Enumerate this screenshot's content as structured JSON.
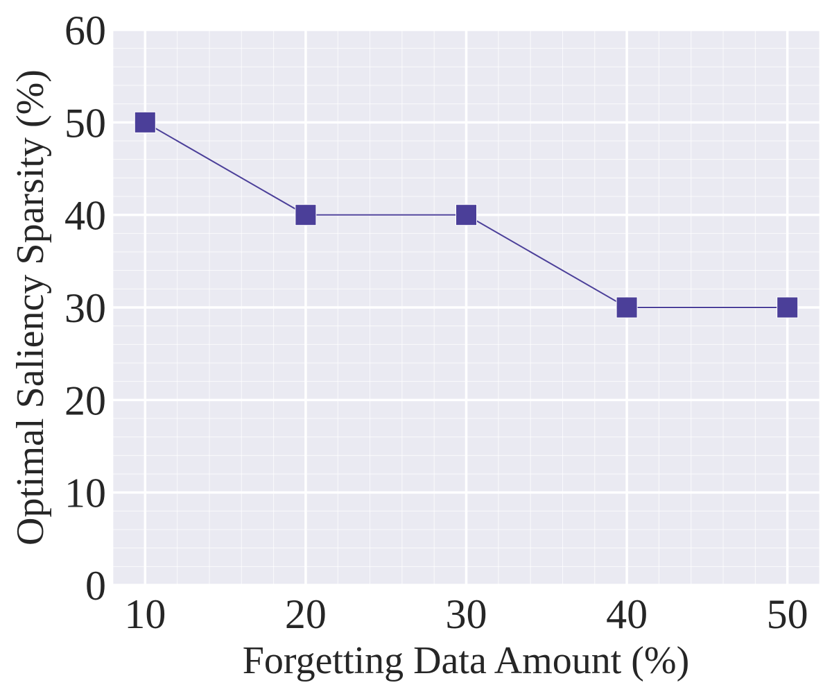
{
  "chart_data": {
    "type": "line",
    "title": "",
    "xlabel": "Forgetting Data Amount (%)",
    "ylabel": "Optimal Saliency Sparsity (%)",
    "x": [
      10,
      20,
      30,
      40,
      50
    ],
    "series": [
      {
        "values": [
          50,
          40,
          40,
          30,
          30
        ]
      }
    ],
    "xlim": [
      8,
      52
    ],
    "ylim": [
      0,
      60
    ],
    "xticks": [
      10,
      20,
      30,
      40,
      50
    ],
    "xtick_labels": [
      "10",
      "20",
      "30",
      "40",
      "50"
    ],
    "yticks": [
      0,
      10,
      20,
      30,
      40,
      50,
      60
    ],
    "ytick_labels": [
      "0",
      "10",
      "20",
      "30",
      "40",
      "50",
      "60"
    ],
    "grid": true,
    "minor_grid": true,
    "marker": "square",
    "colors": {
      "series": "#4b3f99",
      "plot_background": "#eaeaf2",
      "grid": "#ffffff"
    }
  }
}
